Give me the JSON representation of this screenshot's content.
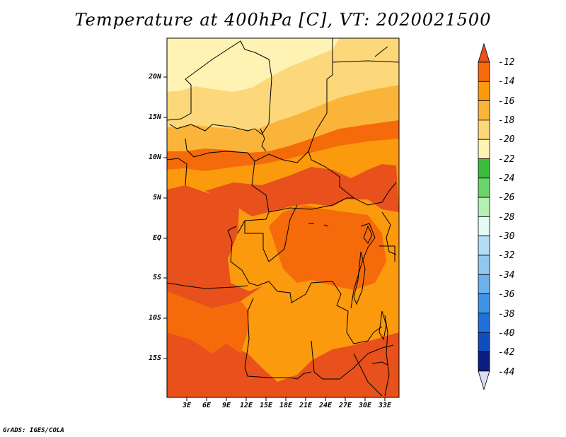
{
  "title": "Temperature at 400hPa [C], VT: 2020021500",
  "footer": "GrADS: IGES/COLA",
  "map": {
    "lat_labels": [
      "20N",
      "15N",
      "10N",
      "5N",
      "EQ",
      "5S",
      "10S",
      "15S"
    ],
    "lon_labels": [
      "3E",
      "6E",
      "9E",
      "12E",
      "15E",
      "18E",
      "21E",
      "24E",
      "27E",
      "30E",
      "33E"
    ]
  },
  "colorbar": {
    "labels": [
      "-12",
      "-14",
      "-16",
      "-18",
      "-20",
      "-22",
      "-24",
      "-26",
      "-28",
      "-30",
      "-32",
      "-34",
      "-36",
      "-38",
      "-40",
      "-42",
      "-44"
    ],
    "colors": [
      "#e8501c",
      "#f56a0a",
      "#fa9a0c",
      "#fbb43a",
      "#fcd87a",
      "#fff3b3",
      "#3cbc3c",
      "#6cd46c",
      "#b4f0b4",
      "#e4fbf4",
      "#b4dcf4",
      "#90c8f0",
      "#6cb0ec",
      "#4094e4",
      "#2070d8",
      "#104cc0",
      "#0c1c80",
      "#dcdcf4"
    ]
  }
}
